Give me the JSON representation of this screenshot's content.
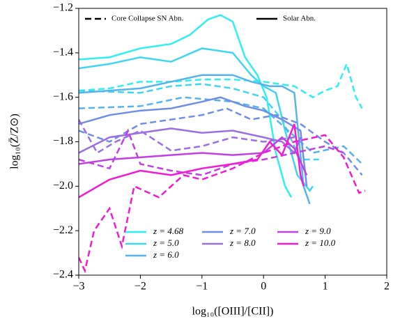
{
  "chart_data": {
    "type": "line",
    "xlabel": "log₁₀([OIII]/[CII])",
    "ylabel": "log₁₀(Z̄/Z⊙)",
    "xlim": [
      -3,
      2
    ],
    "ylim": [
      -2.4,
      -1.2
    ],
    "xticks": [
      {
        "value": -3,
        "label": "−3"
      },
      {
        "value": -2,
        "label": "−2"
      },
      {
        "value": -1,
        "label": "−1"
      },
      0,
      1,
      2
    ],
    "yticks": [
      {
        "value": -2.4,
        "label": "−2.4"
      },
      {
        "value": -2.2,
        "label": "−2.2"
      },
      {
        "value": -2.0,
        "label": "−2.0"
      },
      {
        "value": -1.8,
        "label": "−1.8"
      },
      {
        "value": -1.6,
        "label": "−1.6"
      },
      {
        "value": -1.4,
        "label": "−1.4"
      },
      {
        "value": -1.2,
        "label": "−1.2"
      }
    ],
    "linestyle_legend": [
      {
        "name": "Core Collapse SN Abn.",
        "linestyle": "dashed"
      },
      {
        "name": "Solar Abn.",
        "linestyle": "solid"
      }
    ],
    "series": [
      {
        "name": "z = 4.68",
        "color": "#2ff0f0",
        "solar": {
          "x": [
            -3,
            -2.5,
            -2,
            -1.5,
            -1.2,
            -0.9,
            -0.7,
            -0.5,
            -0.3,
            -0.1,
            0.05,
            0.2,
            0.35,
            0.45
          ],
          "values": [
            -1.43,
            -1.42,
            -1.38,
            -1.36,
            -1.32,
            -1.25,
            -1.23,
            -1.26,
            -1.42,
            -1.5,
            -1.6,
            -1.85,
            -2.0,
            -2.05
          ]
        },
        "core_collapse": {
          "x": [
            -3,
            -2.5,
            -2,
            -1.5,
            -1,
            -0.5,
            0,
            0.5,
            0.8,
            1.0,
            1.2,
            1.35,
            1.5,
            1.6
          ],
          "values": [
            -1.57,
            -1.56,
            -1.53,
            -1.53,
            -1.52,
            -1.52,
            -1.53,
            -1.55,
            -1.6,
            -1.57,
            -1.55,
            -1.45,
            -1.6,
            -1.65
          ]
        }
      },
      {
        "name": "z = 5.0",
        "color": "#3fd6f2",
        "solar": {
          "x": [
            -3,
            -2.5,
            -2,
            -1.5,
            -1,
            -0.5,
            -0.2,
            0,
            0.2,
            0.35,
            0.55,
            0.75,
            0.8
          ],
          "values": [
            -1.47,
            -1.45,
            -1.42,
            -1.44,
            -1.38,
            -1.4,
            -1.5,
            -1.55,
            -1.58,
            -1.75,
            -1.95,
            -2.02,
            -2.0
          ]
        },
        "core_collapse": {
          "x": [
            -3,
            -2,
            -1.5,
            -1,
            -0.5,
            0,
            0.3,
            0.6,
            0.9
          ],
          "values": [
            -1.57,
            -1.58,
            -1.55,
            -1.54,
            -1.56,
            -1.6,
            -1.7,
            -1.88,
            -1.88
          ]
        }
      },
      {
        "name": "z = 6.0",
        "color": "#55b4ee",
        "solar": {
          "x": [
            -3,
            -2,
            -1.5,
            -1,
            -0.5,
            -0.2,
            0.1,
            0.3,
            0.5,
            0.65,
            0.75
          ],
          "values": [
            -1.58,
            -1.56,
            -1.53,
            -1.5,
            -1.5,
            -1.53,
            -1.55,
            -1.55,
            -1.58,
            -2.0,
            -2.08
          ]
        },
        "core_collapse": {
          "x": [
            -3,
            -2,
            -1.3,
            -0.5,
            0,
            0.4,
            0.8,
            1.3,
            1.6
          ],
          "values": [
            -1.65,
            -1.64,
            -1.6,
            -1.62,
            -1.65,
            -1.75,
            -1.85,
            -1.82,
            -1.9
          ]
        }
      },
      {
        "name": "z = 7.0",
        "color": "#6f8ee8",
        "solar": {
          "x": [
            -3,
            -2.5,
            -2,
            -1.5,
            -1,
            -0.7,
            -0.3,
            0,
            0.3,
            0.6,
            0.7
          ],
          "values": [
            -1.72,
            -1.68,
            -1.66,
            -1.65,
            -1.62,
            -1.6,
            -1.64,
            -1.66,
            -1.7,
            -1.75,
            -2.0
          ]
        },
        "core_collapse": {
          "x": [
            -3,
            -2.5,
            -2,
            -1.5,
            -1,
            -0.6,
            -0.2,
            0.2,
            0.6,
            1,
            1.3,
            1.6
          ],
          "values": [
            -1.75,
            -1.8,
            -1.72,
            -1.7,
            -1.68,
            -1.65,
            -1.7,
            -1.68,
            -1.72,
            -1.8,
            -1.85,
            -1.95
          ]
        }
      },
      {
        "name": "z = 8.0",
        "color": "#9b6ee8",
        "solar": {
          "x": [
            -3,
            -2.5,
            -2,
            -1.5,
            -1,
            -0.5,
            0,
            0.3,
            0.5,
            0.6
          ],
          "values": [
            -1.85,
            -1.78,
            -1.76,
            -1.74,
            -1.76,
            -1.75,
            -1.78,
            -1.8,
            -1.85,
            -1.78
          ]
        },
        "core_collapse": {
          "x": [
            -3,
            -2.7,
            -2.4,
            -2,
            -1.5,
            -1,
            -0.5,
            0,
            0.5
          ],
          "values": [
            -1.7,
            -1.85,
            -1.8,
            -1.75,
            -1.84,
            -1.82,
            -1.78,
            -1.8,
            -1.78
          ]
        }
      },
      {
        "name": "z = 9.0",
        "color": "#c23fe6",
        "solar": {
          "x": [
            -3,
            -2.5,
            -2,
            -1.5,
            -1,
            -0.5,
            0,
            0.3,
            0.5,
            0.7
          ],
          "values": [
            -1.9,
            -1.88,
            -1.87,
            -1.86,
            -1.85,
            -1.86,
            -1.85,
            -1.78,
            -1.83,
            -1.95
          ]
        },
        "core_collapse": {
          "x": [
            -3,
            -2.5,
            -2.2,
            -2,
            -1.5,
            -1,
            -0.5,
            0,
            0.5,
            1,
            1.3
          ],
          "values": [
            -1.88,
            -1.92,
            -1.75,
            -1.9,
            -1.93,
            -1.95,
            -1.9,
            -1.88,
            -1.85,
            -1.82,
            -1.85
          ]
        }
      },
      {
        "name": "z = 10.0",
        "color": "#f21ad2",
        "solar": {
          "x": [
            -3,
            -2.5,
            -2,
            -1.5,
            -1,
            -0.5,
            -0.1,
            0.1,
            0.3,
            0.5,
            0.6,
            0.65
          ],
          "values": [
            -2.05,
            -1.97,
            -1.93,
            -1.95,
            -1.92,
            -1.9,
            -1.88,
            -1.8,
            -1.86,
            -1.72,
            -1.95,
            -2.0
          ]
        },
        "core_collapse": {
          "x": [
            -3,
            -2.9,
            -2.75,
            -2.5,
            -2.3,
            -2.1,
            -1.7,
            -1.3,
            -1,
            -0.5,
            0,
            0.5,
            1,
            1.3,
            1.55,
            1.65
          ],
          "values": [
            -2.32,
            -2.38,
            -2.2,
            -2.1,
            -2.27,
            -2.0,
            -2.05,
            -1.95,
            -1.97,
            -1.92,
            -1.85,
            -1.8,
            -1.77,
            -1.87,
            -2.03,
            -2.02
          ]
        }
      }
    ]
  }
}
